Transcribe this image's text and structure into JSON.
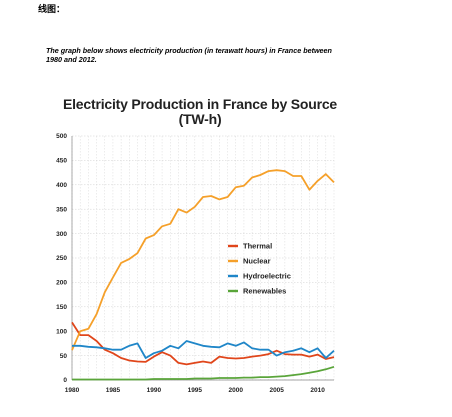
{
  "heading": "线图：",
  "prompt": "The graph below shows electricity production (in terawatt hours) in France between 1980 and 2012.",
  "chart_data": {
    "type": "line",
    "title_line1": "Electricity Production in France by Source",
    "title_line2": "(TW-h)",
    "xlabel": "",
    "ylabel": "",
    "xlim": [
      1980,
      2012
    ],
    "ylim": [
      0,
      500
    ],
    "x_ticks": [
      1980,
      1985,
      1990,
      1995,
      2000,
      2005,
      2010
    ],
    "y_ticks": [
      0,
      50,
      100,
      150,
      200,
      250,
      300,
      350,
      400,
      450,
      500
    ],
    "grid": true,
    "legend_position": "center-right",
    "x": [
      1980,
      1981,
      1982,
      1983,
      1984,
      1985,
      1986,
      1987,
      1988,
      1989,
      1990,
      1991,
      1992,
      1993,
      1994,
      1995,
      1996,
      1997,
      1998,
      1999,
      2000,
      2001,
      2002,
      2003,
      2004,
      2005,
      2006,
      2007,
      2008,
      2009,
      2010,
      2011,
      2012
    ],
    "series": [
      {
        "name": "Thermal",
        "color": "#e0461b",
        "values": [
          118,
          92,
          92,
          80,
          62,
          55,
          45,
          40,
          38,
          37,
          48,
          57,
          50,
          35,
          32,
          35,
          38,
          35,
          48,
          45,
          44,
          45,
          48,
          50,
          53,
          60,
          53,
          52,
          52,
          48,
          52,
          43,
          47
        ]
      },
      {
        "name": "Nuclear",
        "color": "#f5a02a",
        "values": [
          61,
          100,
          105,
          135,
          180,
          210,
          240,
          248,
          260,
          290,
          297,
          315,
          320,
          350,
          343,
          355,
          375,
          377,
          370,
          375,
          395,
          398,
          415,
          420,
          428,
          430,
          428,
          418,
          418,
          390,
          408,
          422,
          405
        ]
      },
      {
        "name": "Hydroelectric",
        "color": "#1f86c8",
        "values": [
          70,
          70,
          68,
          67,
          65,
          62,
          62,
          70,
          75,
          45,
          55,
          60,
          70,
          65,
          80,
          75,
          70,
          68,
          67,
          75,
          70,
          77,
          65,
          62,
          62,
          50,
          57,
          60,
          65,
          57,
          65,
          45,
          60
        ]
      },
      {
        "name": "Renewables",
        "color": "#5aa53a",
        "values": [
          1,
          1,
          1,
          1,
          1,
          1,
          1,
          1,
          1,
          1,
          2,
          2,
          2,
          2,
          2,
          3,
          3,
          3,
          4,
          4,
          4,
          5,
          5,
          6,
          6,
          7,
          8,
          10,
          12,
          15,
          18,
          22,
          27
        ]
      }
    ]
  }
}
